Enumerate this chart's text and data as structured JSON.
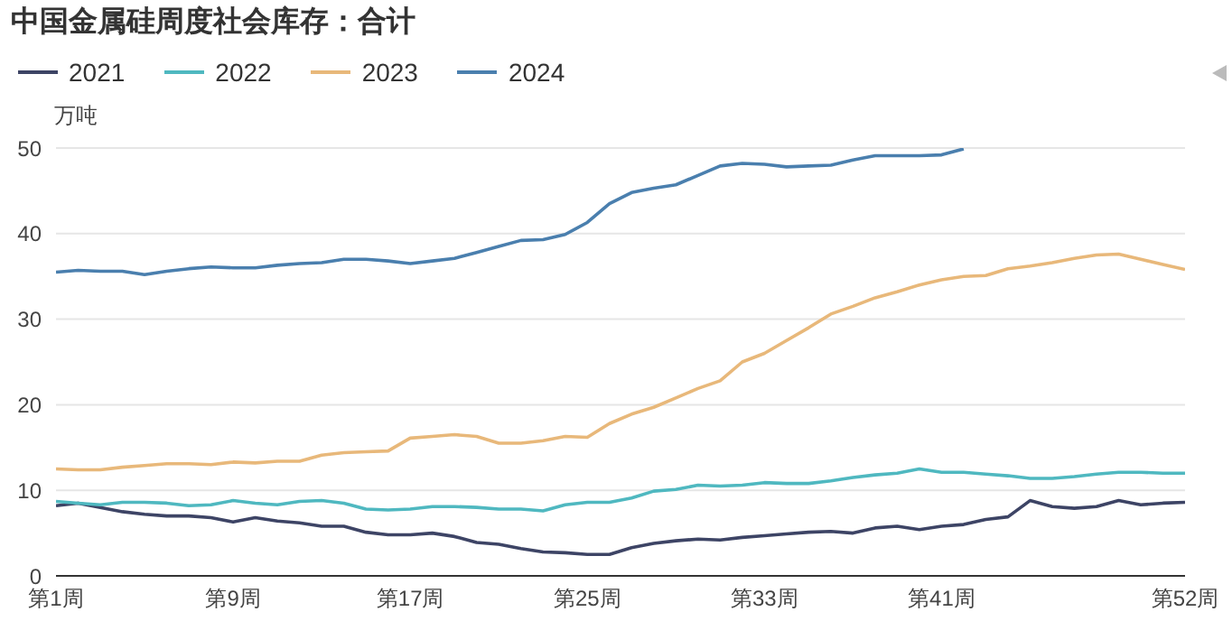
{
  "chart_data": {
    "type": "line",
    "title": "中国金属硅周度社会库存：合计",
    "ylabel": "万吨",
    "categories": [
      "第1周",
      null,
      null,
      null,
      null,
      null,
      null,
      null,
      "第9周",
      null,
      null,
      null,
      null,
      null,
      null,
      null,
      "第17周",
      null,
      null,
      null,
      null,
      null,
      null,
      null,
      "第25周",
      null,
      null,
      null,
      null,
      null,
      null,
      null,
      "第33周",
      null,
      null,
      null,
      null,
      null,
      null,
      null,
      "第41周",
      null,
      null,
      null,
      null,
      null,
      null,
      null,
      null,
      null,
      null,
      "第52周"
    ],
    "series": [
      {
        "name": "2021",
        "color": "#3d4465",
        "values": [
          8.2,
          8.5,
          8.0,
          7.5,
          7.2,
          7.0,
          7.0,
          6.8,
          6.3,
          6.8,
          6.4,
          6.2,
          5.8,
          5.8,
          5.1,
          4.8,
          4.8,
          5.0,
          4.6,
          3.9,
          3.7,
          3.2,
          2.8,
          2.7,
          2.5,
          2.5,
          3.3,
          3.8,
          4.1,
          4.3,
          4.2,
          4.5,
          4.7,
          4.9,
          5.1,
          5.2,
          5.0,
          5.6,
          5.8,
          5.4,
          5.8,
          6.0,
          6.6,
          6.9,
          8.8,
          8.1,
          7.9,
          8.1,
          8.8,
          8.3,
          8.5,
          8.6
        ]
      },
      {
        "name": "2022",
        "color": "#4fb8c0",
        "values": [
          8.7,
          8.5,
          8.3,
          8.6,
          8.6,
          8.5,
          8.2,
          8.3,
          8.8,
          8.5,
          8.3,
          8.7,
          8.8,
          8.5,
          7.8,
          7.7,
          7.8,
          8.1,
          8.1,
          8.0,
          7.8,
          7.8,
          7.6,
          8.3,
          8.6,
          8.6,
          9.1,
          9.9,
          10.1,
          10.6,
          10.5,
          10.6,
          10.9,
          10.8,
          10.8,
          11.1,
          11.5,
          11.8,
          12.0,
          12.5,
          12.1,
          12.1,
          11.9,
          11.7,
          11.4,
          11.4,
          11.6,
          11.9,
          12.1,
          12.1,
          12.0,
          12.0
        ]
      },
      {
        "name": "2023",
        "color": "#e8b87a",
        "values": [
          12.5,
          12.4,
          12.4,
          12.7,
          12.9,
          13.1,
          13.1,
          13.0,
          13.3,
          13.2,
          13.4,
          13.4,
          14.1,
          14.4,
          14.5,
          14.6,
          16.1,
          16.3,
          16.5,
          16.3,
          15.5,
          15.5,
          15.8,
          16.3,
          16.2,
          17.8,
          18.9,
          19.7,
          20.8,
          21.9,
          22.8,
          25.0,
          26.0,
          27.5,
          29.0,
          30.6,
          31.5,
          32.5,
          33.2,
          34.0,
          34.6,
          35.0,
          35.1,
          35.9,
          36.2,
          36.6,
          37.1,
          37.5,
          37.6,
          37.0,
          36.4,
          35.8
        ]
      },
      {
        "name": "2024",
        "color": "#4a7fae",
        "values": [
          35.5,
          35.7,
          35.6,
          35.6,
          35.2,
          35.6,
          35.9,
          36.1,
          36.0,
          36.0,
          36.3,
          36.5,
          36.6,
          37.0,
          37.0,
          36.8,
          36.5,
          36.8,
          37.1,
          37.8,
          38.5,
          39.2,
          39.3,
          39.9,
          41.3,
          43.5,
          44.8,
          45.3,
          45.7,
          46.8,
          47.9,
          48.2,
          48.1,
          47.8,
          47.9,
          48.0,
          48.6,
          49.1,
          49.1,
          49.1,
          49.2,
          49.9,
          null,
          null,
          null,
          null,
          null,
          null,
          null,
          null,
          null,
          null
        ]
      }
    ],
    "ylim": [
      0,
      50
    ],
    "yticks": [
      0,
      10,
      20,
      30,
      40,
      50
    ],
    "grid": "y",
    "legend": "top left",
    "marker": "none",
    "line_style": "solid"
  }
}
